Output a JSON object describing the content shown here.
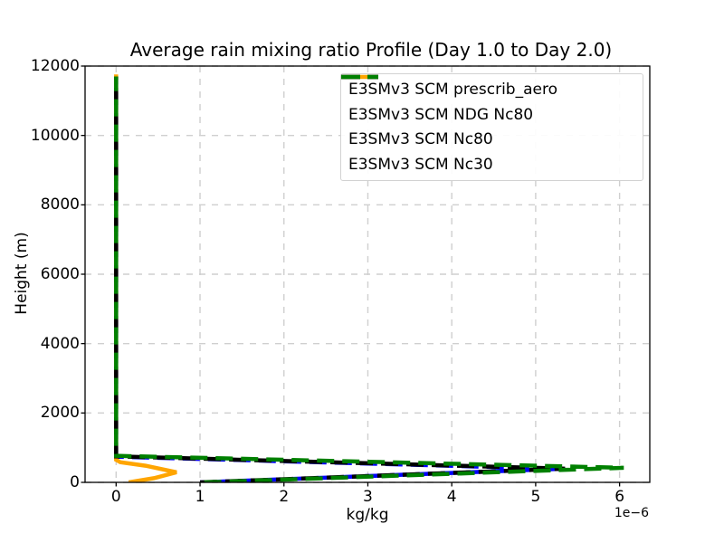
{
  "chart_data": {
    "type": "line",
    "title": "Average rain mixing ratio Profile (Day 1.0 to Day 2.0)",
    "xlabel": "kg/kg",
    "ylabel": "Height (m)",
    "x_offset_label": "1e−6",
    "x_units_multiplier": 1e-06,
    "xlim": [
      -0.37,
      6.36
    ],
    "ylim": [
      0,
      12000
    ],
    "xticks": [
      0,
      1,
      2,
      3,
      4,
      5,
      6
    ],
    "yticks": [
      0,
      2000,
      4000,
      6000,
      8000,
      10000,
      12000
    ],
    "grid": true,
    "grid_style": "dashed",
    "legend_position": "upper right",
    "series": [
      {
        "name": "E3SMv3 SCM prescrib_aero",
        "color": "#0000ff",
        "style": "dashed",
        "points_x_1e6": [
          1.0,
          5.3,
          0.0,
          0.0
        ],
        "points_height_m": [
          0,
          390,
          740,
          11700
        ]
      },
      {
        "name": "E3SMv3 SCM NDG Nc80",
        "color": "#ffa500",
        "style": "solid",
        "points_x_1e6": [
          0.15,
          0.45,
          0.72,
          0.35,
          0.05,
          0.0,
          0.0
        ],
        "points_height_m": [
          0,
          120,
          290,
          480,
          580,
          650,
          11760
        ]
      },
      {
        "name": "E3SMv3 SCM Nc80",
        "color": "#000000",
        "style": "dashed",
        "points_x_1e6": [
          1.0,
          5.35,
          0.0,
          0.0
        ],
        "points_height_m": [
          0,
          395,
          750,
          11700
        ]
      },
      {
        "name": "E3SMv3 SCM Nc30",
        "color": "#008000",
        "style": "dashed",
        "points_x_1e6": [
          1.05,
          6.05,
          0.0,
          0.0
        ],
        "points_height_m": [
          0,
          420,
          765,
          11700
        ]
      }
    ]
  },
  "colors": {
    "background": "#ffffff",
    "spine": "#000000",
    "grid": "#cfcfcf",
    "tick_text": "#000000",
    "legend_border": "#d2d2d2"
  }
}
